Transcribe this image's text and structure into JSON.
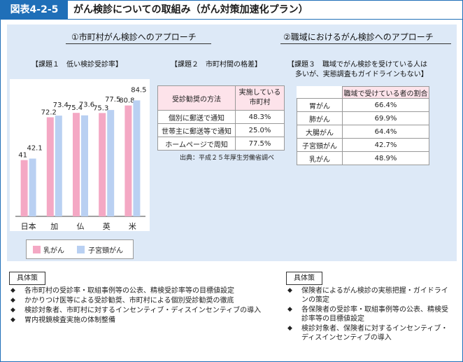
{
  "figure": {
    "number": "図表4-2-5",
    "title": "がん検診についての取組み（がん対策加速化プラン）"
  },
  "left_section": {
    "heading": "①市町村がん検診へのアプローチ",
    "task1": "【課題１　低い検診受診率】",
    "task2": "【課題２　市町村間の格差】"
  },
  "right_section": {
    "heading": "②職域におけるがん検診へのアプローチ",
    "task3_line1": "【課題３　職域でがん検診を受けている人は",
    "task3_line2": "多いが、実態調査もガイドラインもない】"
  },
  "chart_data": {
    "type": "bar",
    "categories": [
      "日本",
      "加",
      "仏",
      "英",
      "米"
    ],
    "series": [
      {
        "name": "乳がん",
        "values": [
          41,
          72.2,
          75.4,
          75.3,
          80.8
        ],
        "labels": [
          "41",
          "72.2",
          "75.4",
          "75.3",
          "80.8"
        ],
        "color": "#f4a8c4"
      },
      {
        "name": "子宮頸がん",
        "values": [
          42.1,
          73.4,
          73.6,
          77.5,
          84.5
        ],
        "labels": [
          "42.1",
          "73.4",
          "73.6",
          "77.5",
          "84.5"
        ],
        "color": "#b9d0f2"
      }
    ],
    "ylim": [
      0,
      100
    ],
    "grid": false,
    "legend": "bottom"
  },
  "table2": {
    "headers": [
      "受診勧奨の方法",
      "実施している\n市町村"
    ],
    "rows": [
      [
        "個別に郵送で通知",
        "48.3%"
      ],
      [
        "世帯主に郵送等で通知",
        "25.0%"
      ],
      [
        "ホームページで周知",
        "77.5%"
      ]
    ],
    "source": "出典：平成２５年厚生労働省調べ"
  },
  "table3": {
    "header": "職域で受けている者の割合",
    "rows": [
      [
        "胃がん",
        "66.4%"
      ],
      [
        "肺がん",
        "69.9%"
      ],
      [
        "大腸がん",
        "64.4%"
      ],
      [
        "子宮頸がん",
        "42.7%"
      ],
      [
        "乳がん",
        "48.9%"
      ]
    ]
  },
  "measures_left": {
    "label": "具体策",
    "bullet": "◆",
    "items": [
      "各市町村の受診率・取組事例等の公表、精検受診率等の目標値設定",
      "かかりつけ医等による受診勧奨、市町村による個別受診勧奨の徹底",
      "検診対象者、市町村に対するインセンティブ・ディスインセンティブの導入",
      "胃内視鏡検査実施の体制整備"
    ]
  },
  "measures_right": {
    "label": "具体策",
    "bullet": "◆",
    "items": [
      "保険者によるがん検診の実態把握・ガイドラインの策定",
      "各保険者の受診率・取組事例等の公表、精検受診率等の目標値設定",
      "検診対象者、保険者に対するインセンティブ・ディスインセンティブの導入"
    ]
  }
}
